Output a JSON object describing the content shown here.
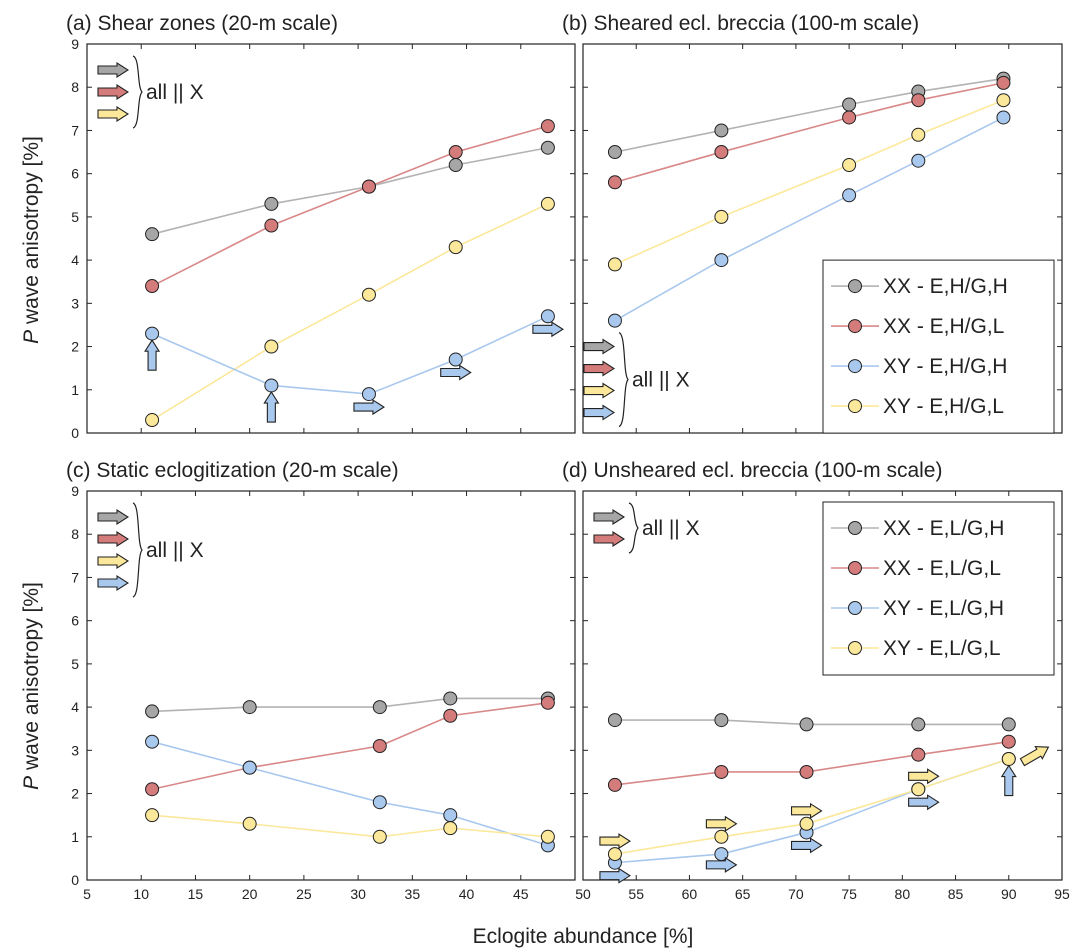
{
  "xlabel": "Eclogite abundance [%]",
  "ylabel_prefix": "P",
  "ylabel_rest": " wave anisotropy [%]",
  "colors": {
    "XX_H": "#a6a6a6",
    "XX_L": "#d47b7b",
    "XY_H": "#a9c8ee",
    "XY_L": "#fbe89a",
    "XX_H_line": "#b3b3b3",
    "XX_L_line": "#d98888",
    "XY_H_line": "#a9c8ee",
    "XY_L_line": "#fbe89a"
  },
  "chart_data": [
    {
      "id": "a",
      "type": "line",
      "title": "(a) Shear zones (20-m scale)",
      "xlim": [
        5,
        50
      ],
      "ylim": [
        0,
        9
      ],
      "xticks": [
        5,
        10,
        15,
        20,
        25,
        30,
        35,
        40,
        45
      ],
      "yticks": [
        0,
        1,
        2,
        3,
        4,
        5,
        6,
        7,
        8,
        9
      ],
      "x": [
        11,
        22,
        31,
        39,
        47.5
      ],
      "series": [
        {
          "key": "XX_H",
          "values": [
            4.6,
            5.3,
            5.7,
            6.2,
            6.6
          ]
        },
        {
          "key": "XX_L",
          "values": [
            3.4,
            4.8,
            5.7,
            6.5,
            7.1
          ]
        },
        {
          "key": "XY_L",
          "values": [
            0.3,
            2.0,
            3.2,
            4.3,
            5.3
          ]
        },
        {
          "key": "XY_H",
          "values": [
            2.3,
            1.1,
            0.9,
            1.7,
            2.7
          ]
        }
      ],
      "annotation": {
        "text": "all || X",
        "arrow_colors": [
          "XX_H",
          "XX_L",
          "XY_L"
        ]
      },
      "arrows": [
        {
          "x": 11,
          "y": 1.8,
          "dir": "up",
          "color": "XY_H"
        },
        {
          "x": 22,
          "y": 0.6,
          "dir": "up",
          "color": "XY_H"
        },
        {
          "x": 31,
          "y": 0.6,
          "dir": "right",
          "color": "XY_H"
        },
        {
          "x": 39,
          "y": 1.4,
          "dir": "right",
          "color": "XY_H"
        },
        {
          "x": 47.5,
          "y": 2.4,
          "dir": "right",
          "color": "XY_H"
        }
      ]
    },
    {
      "id": "b",
      "type": "line",
      "title": "(b) Sheared ecl. breccia (100-m scale)",
      "xlim": [
        50,
        95
      ],
      "ylim": [
        0,
        9
      ],
      "xticks": [
        50,
        55,
        60,
        65,
        70,
        75,
        80,
        85,
        90,
        95
      ],
      "yticks": [
        0,
        1,
        2,
        3,
        4,
        5,
        6,
        7,
        8,
        9
      ],
      "x": [
        53,
        63,
        75,
        81.5,
        89.5
      ],
      "series": [
        {
          "key": "XX_H",
          "values": [
            6.5,
            7.0,
            7.6,
            7.9,
            8.2
          ]
        },
        {
          "key": "XX_L",
          "values": [
            5.8,
            6.5,
            7.3,
            7.7,
            8.1
          ]
        },
        {
          "key": "XY_L",
          "values": [
            3.9,
            5.0,
            6.2,
            6.9,
            7.7
          ]
        },
        {
          "key": "XY_H",
          "values": [
            2.6,
            4.0,
            5.5,
            6.3,
            7.3
          ]
        }
      ],
      "legend": {
        "placement": "right",
        "items": [
          {
            "key": "XX_H",
            "label": "XX - E,H/G,H"
          },
          {
            "key": "XX_L",
            "label": "XX - E,H/G,L"
          },
          {
            "key": "XY_H",
            "label": "XY - E,H/G,H"
          },
          {
            "key": "XY_L",
            "label": "XY - E,H/G,L"
          }
        ]
      },
      "annotation": {
        "text": "all || X",
        "arrow_colors": [
          "XX_H",
          "XX_L",
          "XY_L",
          "XY_H"
        ]
      },
      "arrows": []
    },
    {
      "id": "c",
      "type": "line",
      "title": "(c) Static eclogitization (20-m scale)",
      "xlim": [
        5,
        50
      ],
      "ylim": [
        0,
        9
      ],
      "xticks": [
        5,
        10,
        15,
        20,
        25,
        30,
        35,
        40,
        45
      ],
      "yticks": [
        0,
        1,
        2,
        3,
        4,
        5,
        6,
        7,
        8,
        9
      ],
      "x": [
        11,
        20,
        32,
        38.5,
        47.5
      ],
      "series": [
        {
          "key": "XX_H",
          "values": [
            3.9,
            4.0,
            4.0,
            4.2,
            4.2
          ]
        },
        {
          "key": "XX_L",
          "values": [
            2.1,
            2.6,
            3.1,
            3.8,
            4.1
          ]
        },
        {
          "key": "XY_H",
          "values": [
            3.2,
            2.6,
            1.8,
            1.5,
            0.8
          ]
        },
        {
          "key": "XY_L",
          "values": [
            1.5,
            1.3,
            1.0,
            1.2,
            1.0
          ]
        }
      ],
      "annotation": {
        "text": "all || X",
        "arrow_colors": [
          "XX_H",
          "XX_L",
          "XY_L",
          "XY_H"
        ]
      },
      "arrows": []
    },
    {
      "id": "d",
      "type": "line",
      "title": "(d) Unsheared ecl. breccia (100-m scale)",
      "xlim": [
        50,
        95
      ],
      "ylim": [
        0,
        9
      ],
      "xticks": [
        50,
        55,
        60,
        65,
        70,
        75,
        80,
        85,
        90,
        95
      ],
      "yticks": [
        0,
        1,
        2,
        3,
        4,
        5,
        6,
        7,
        8,
        9
      ],
      "x": [
        53,
        63,
        71,
        81.5,
        90
      ],
      "series": [
        {
          "key": "XX_H",
          "values": [
            3.7,
            3.7,
            3.6,
            3.6,
            3.6
          ]
        },
        {
          "key": "XX_L",
          "values": [
            2.2,
            2.5,
            2.5,
            2.9,
            3.2
          ]
        },
        {
          "key": "XY_H",
          "values": [
            0.4,
            0.6,
            1.1,
            2.1,
            2.8
          ]
        },
        {
          "key": "XY_L",
          "values": [
            0.6,
            1.0,
            1.3,
            2.1,
            2.8
          ]
        }
      ],
      "legend": {
        "placement": "top-right",
        "items": [
          {
            "key": "XX_H",
            "label": "XX - E,L/G,H"
          },
          {
            "key": "XX_L",
            "label": "XX - E,L/G,L"
          },
          {
            "key": "XY_H",
            "label": "XY - E,L/G,H"
          },
          {
            "key": "XY_L",
            "label": "XY - E,L/G,L"
          }
        ]
      },
      "annotation": {
        "text": "all || X",
        "arrow_colors": [
          "XX_H",
          "XX_L"
        ]
      },
      "arrows": [
        {
          "x": 53,
          "y": 0.9,
          "dir": "right",
          "color": "XY_L"
        },
        {
          "x": 53,
          "y": 0.1,
          "dir": "right",
          "color": "XY_H"
        },
        {
          "x": 63,
          "y": 1.3,
          "dir": "right",
          "color": "XY_L"
        },
        {
          "x": 63,
          "y": 0.35,
          "dir": "right",
          "color": "XY_H"
        },
        {
          "x": 71,
          "y": 1.6,
          "dir": "right",
          "color": "XY_L"
        },
        {
          "x": 71,
          "y": 0.8,
          "dir": "right",
          "color": "XY_H"
        },
        {
          "x": 82,
          "y": 2.4,
          "dir": "right",
          "color": "XY_L"
        },
        {
          "x": 82,
          "y": 1.8,
          "dir": "right",
          "color": "XY_H"
        },
        {
          "x": 90,
          "y": 2.3,
          "dir": "up",
          "color": "XY_H"
        },
        {
          "x": 92.5,
          "y": 2.9,
          "dir": "upright",
          "color": "XY_L"
        }
      ]
    }
  ]
}
